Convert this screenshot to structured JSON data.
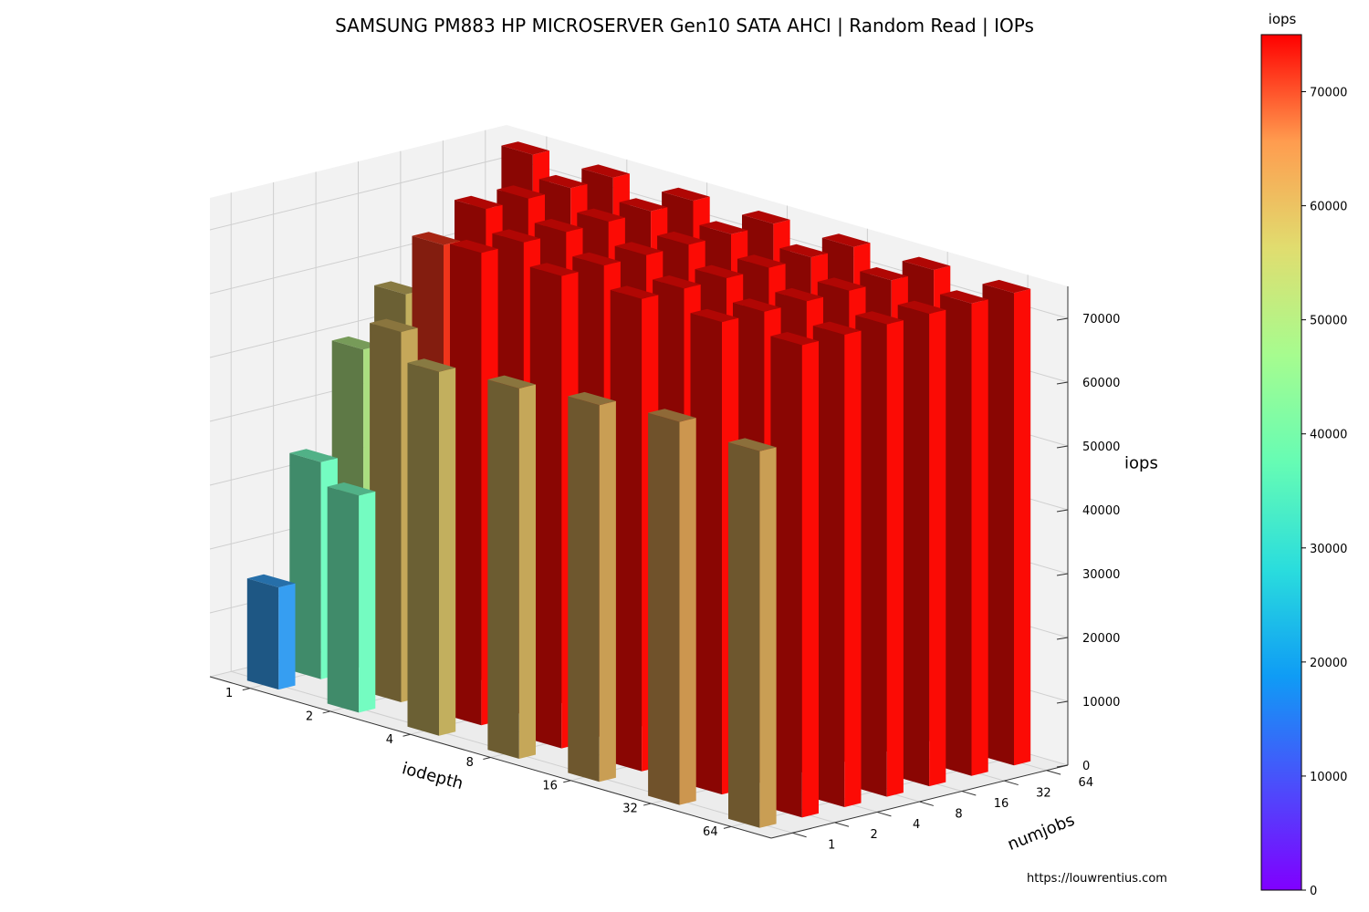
{
  "chart_data": {
    "type": "bar3d",
    "title": "SAMSUNG PM883 HP MICROSERVER Gen10 SATA AHCI  | Random Read | IOPs",
    "xlabel": "iodepth",
    "ylabel": "numjobs",
    "zlabel": "iops",
    "x_categories": [
      "1",
      "2",
      "4",
      "8",
      "16",
      "32",
      "64"
    ],
    "y_categories": [
      "1",
      "2",
      "4",
      "8",
      "16",
      "32",
      "64"
    ],
    "zlim": [
      0,
      75000
    ],
    "z_ticks": [
      0,
      10000,
      20000,
      30000,
      40000,
      50000,
      60000,
      70000
    ],
    "grid": true,
    "colormap": "rainbow",
    "colorbar": {
      "label": "iops",
      "ticks": [
        0,
        10000,
        20000,
        30000,
        40000,
        50000,
        60000,
        70000
      ],
      "range": [
        0,
        75000
      ]
    },
    "values": [
      [
        16000,
        34000,
        57000,
        58000,
        59000,
        60000,
        59000
      ],
      [
        34000,
        58000,
        74000,
        74000,
        74000,
        74000,
        74000
      ],
      [
        50000,
        70000,
        74000,
        74000,
        74000,
        74000,
        74000
      ],
      [
        57000,
        74000,
        74000,
        74000,
        74000,
        74000,
        74000
      ],
      [
        59000,
        74000,
        74000,
        74000,
        74000,
        74000,
        74000
      ],
      [
        66000,
        74000,
        74000,
        74000,
        74000,
        74000,
        74000
      ],
      [
        74000,
        74000,
        74000,
        74000,
        74000,
        74000,
        74000
      ]
    ]
  },
  "footer": {
    "credit": "https://louwrentius.com"
  }
}
